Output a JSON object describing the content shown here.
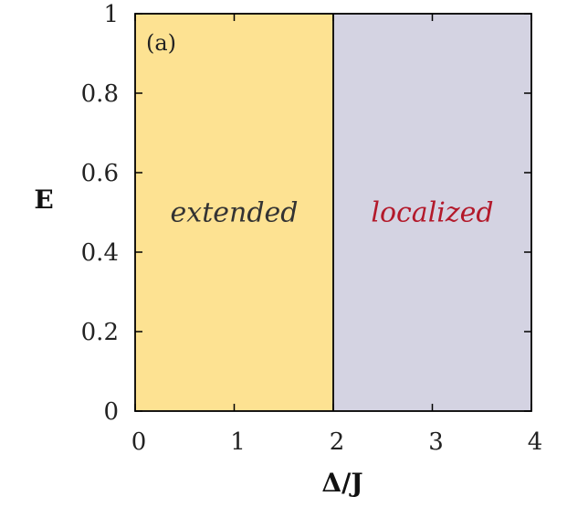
{
  "chart_data": {
    "type": "area",
    "panel_label": "(a)",
    "xlabel": "Δ/J",
    "ylabel": "E",
    "xlim": [
      0,
      4
    ],
    "ylim": [
      0,
      1
    ],
    "x_ticks": [
      "0",
      "1",
      "2",
      "3",
      "4"
    ],
    "y_ticks": [
      "0",
      "0.2",
      "0.4",
      "0.6",
      "0.8",
      "1"
    ],
    "grid": false,
    "boundary_x": 2,
    "regions": [
      {
        "label": "extended",
        "x_range": [
          0,
          2
        ],
        "color": "#fde292",
        "label_color": "#333333",
        "label_x": 1,
        "label_y": 0.5
      },
      {
        "label": "localized",
        "x_range": [
          2,
          4
        ],
        "color": "#d4d3e2",
        "label_color": "#b3192b",
        "label_x": 3,
        "label_y": 0.5
      }
    ]
  }
}
